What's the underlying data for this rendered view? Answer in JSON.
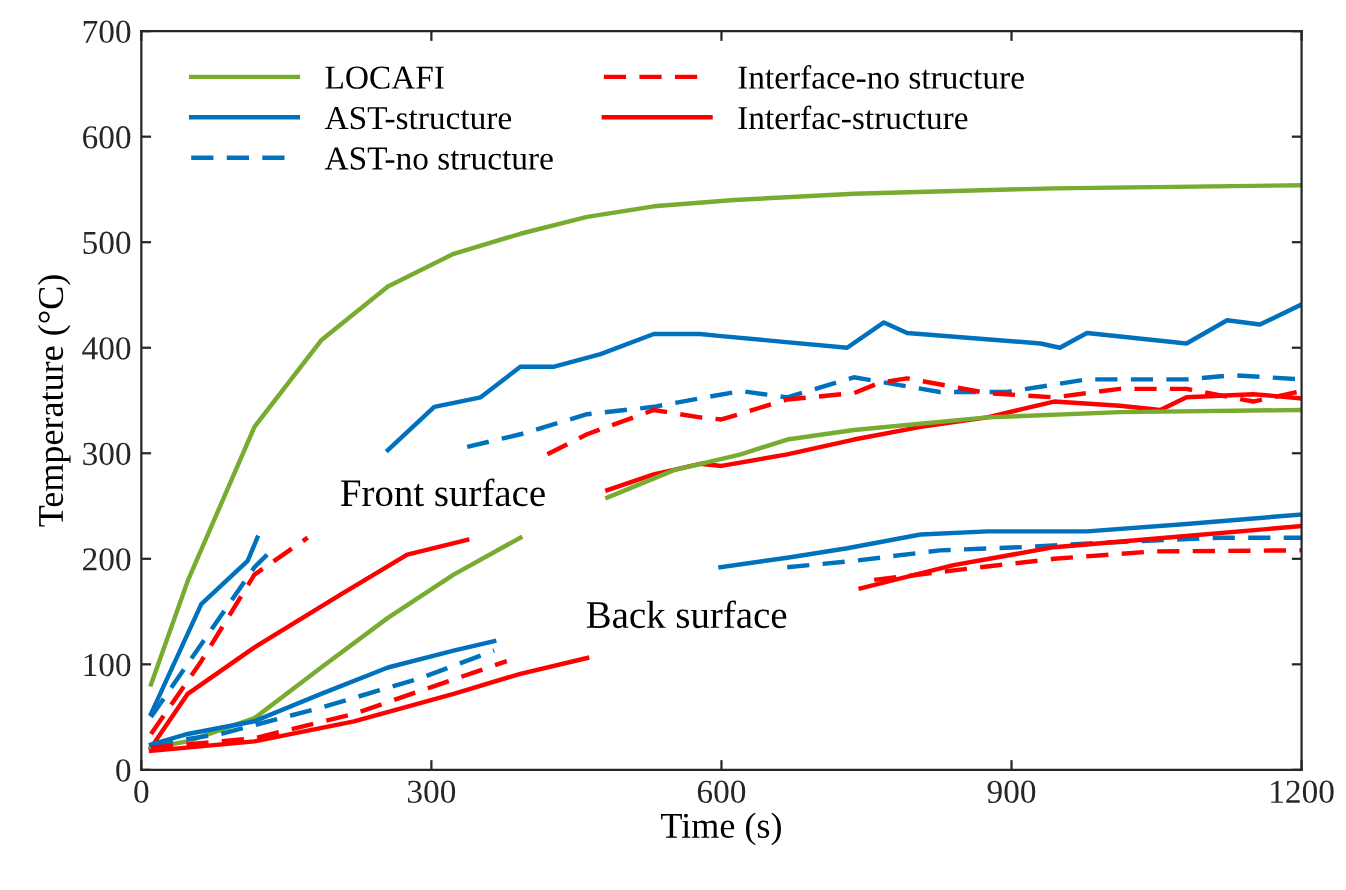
{
  "chart_data": {
    "type": "line",
    "xlabel": "Time (s)",
    "ylabel": "Temperature (°C)",
    "xlim": [
      0,
      1200
    ],
    "xticks": [
      0,
      300,
      600,
      900,
      1200
    ],
    "ylim": [
      0,
      700
    ],
    "yticks": [
      0,
      100,
      200,
      300,
      400,
      500,
      600,
      700
    ],
    "grid": false,
    "legend": "top left",
    "annotations": [
      "Front surface",
      "Back surface"
    ],
    "series": [
      {
        "name": "LOCAFI",
        "color": "#77ac30",
        "line_style": "solid",
        "x": [
          10,
          48,
          117,
          186,
          255,
          323,
          392,
          461,
          530,
          613,
          737,
          944,
          1200
        ],
        "values": [
          81,
          179,
          325,
          407,
          458,
          489,
          508,
          524,
          534,
          540,
          546,
          551,
          554
        ]
      },
      {
        "name": "AST-structure",
        "color": "#0072bd",
        "line_style": "solid",
        "x": [
          10,
          62,
          110,
          120,
          121,
          255,
          303,
          351,
          392,
          427,
          475,
          530,
          578,
          600,
          730,
          768,
          792,
          930,
          950,
          978,
          1081,
          1123,
          1157,
          1200
        ],
        "values": [
          53,
          157,
          198,
          220,
          null,
          303,
          344,
          353,
          382,
          382,
          394,
          413,
          413,
          411,
          400,
          424,
          414,
          404,
          400,
          414,
          404,
          426,
          422,
          441
        ]
      },
      {
        "name": "AST-no structure",
        "color": "#0072bd",
        "line_style": "dashed",
        "x": [
          10,
          62,
          117,
          138,
          139,
          337,
          392,
          461,
          530,
          620,
          668,
          737,
          826,
          895,
          978,
          1081,
          1129,
          1200
        ],
        "values": [
          50,
          119,
          192,
          211,
          null,
          306,
          318,
          337,
          344,
          359,
          353,
          372,
          358,
          358,
          370,
          370,
          374,
          370
        ]
      },
      {
        "name": "Interface-no structure",
        "color": "#ff0000",
        "line_style": "dashed",
        "x": [
          10,
          62,
          117,
          172,
          173,
          420,
          461,
          530,
          578,
          600,
          668,
          737,
          764,
          792,
          875,
          944,
          1012,
          1081,
          1150,
          1200
        ],
        "values": [
          34,
          103,
          185,
          220,
          null,
          299,
          318,
          341,
          334,
          332,
          351,
          357,
          367,
          371,
          357,
          353,
          361,
          361,
          349,
          359
        ]
      },
      {
        "name": "Interfac-structure",
        "color": "#ff0000",
        "line_style": "solid",
        "x": [
          10,
          48,
          117,
          206,
          275,
          337,
          338,
          482,
          530,
          578,
          600,
          668,
          737,
          806,
          875,
          944,
          1012,
          1054,
          1081,
          1150,
          1200
        ],
        "values": [
          21,
          72,
          116,
          166,
          204,
          218,
          null,
          265,
          280,
          290,
          288,
          299,
          313,
          325,
          334,
          349,
          345,
          341,
          353,
          356,
          352
        ]
      },
      {
        "color": "#77ac30",
        "line_style": "solid",
        "x": [
          10,
          48,
          117,
          186,
          255,
          323,
          392,
          393,
          482,
          551,
          620,
          668,
          737,
          875,
          1012,
          1200
        ],
        "values": [
          21,
          27,
          49,
          97,
          144,
          185,
          220,
          null,
          258,
          284,
          299,
          313,
          322,
          334,
          339,
          341
        ]
      },
      {
        "color": "#0072bd",
        "line_style": "solid",
        "x": [
          10,
          48,
          117,
          186,
          255,
          323,
          365,
          366,
          599,
          668,
          730,
          806,
          875,
          978,
          1081,
          1200
        ],
        "values": [
          24,
          34,
          46,
          72,
          97,
          113,
          122,
          null,
          192,
          201,
          210,
          223,
          226,
          226,
          233,
          242
        ]
      },
      {
        "color": "#0072bd",
        "line_style": "dashed",
        "x": [
          10,
          82,
          186,
          289,
          365,
          366,
          668,
          737,
          826,
          909,
          1012,
          1116,
          1200
        ],
        "values": [
          24,
          34,
          59,
          87,
          113,
          null,
          192,
          198,
          208,
          211,
          216,
          220,
          220
        ]
      },
      {
        "color": "#ff0000",
        "line_style": "dashed",
        "x": [
          10,
          117,
          220,
          289,
          378,
          379,
          758,
          840,
          944,
          1047,
          1200
        ],
        "values": [
          21,
          30,
          53,
          75,
          103,
          null,
          180,
          189,
          200,
          207,
          208
        ]
      },
      {
        "color": "#ff0000",
        "line_style": "solid",
        "x": [
          10,
          117,
          220,
          323,
          392,
          461,
          462,
          744,
          840,
          944,
          1047,
          1200
        ],
        "values": [
          18,
          27,
          46,
          72,
          91,
          106,
          null,
          172,
          194,
          211,
          219,
          231
        ]
      }
    ]
  }
}
